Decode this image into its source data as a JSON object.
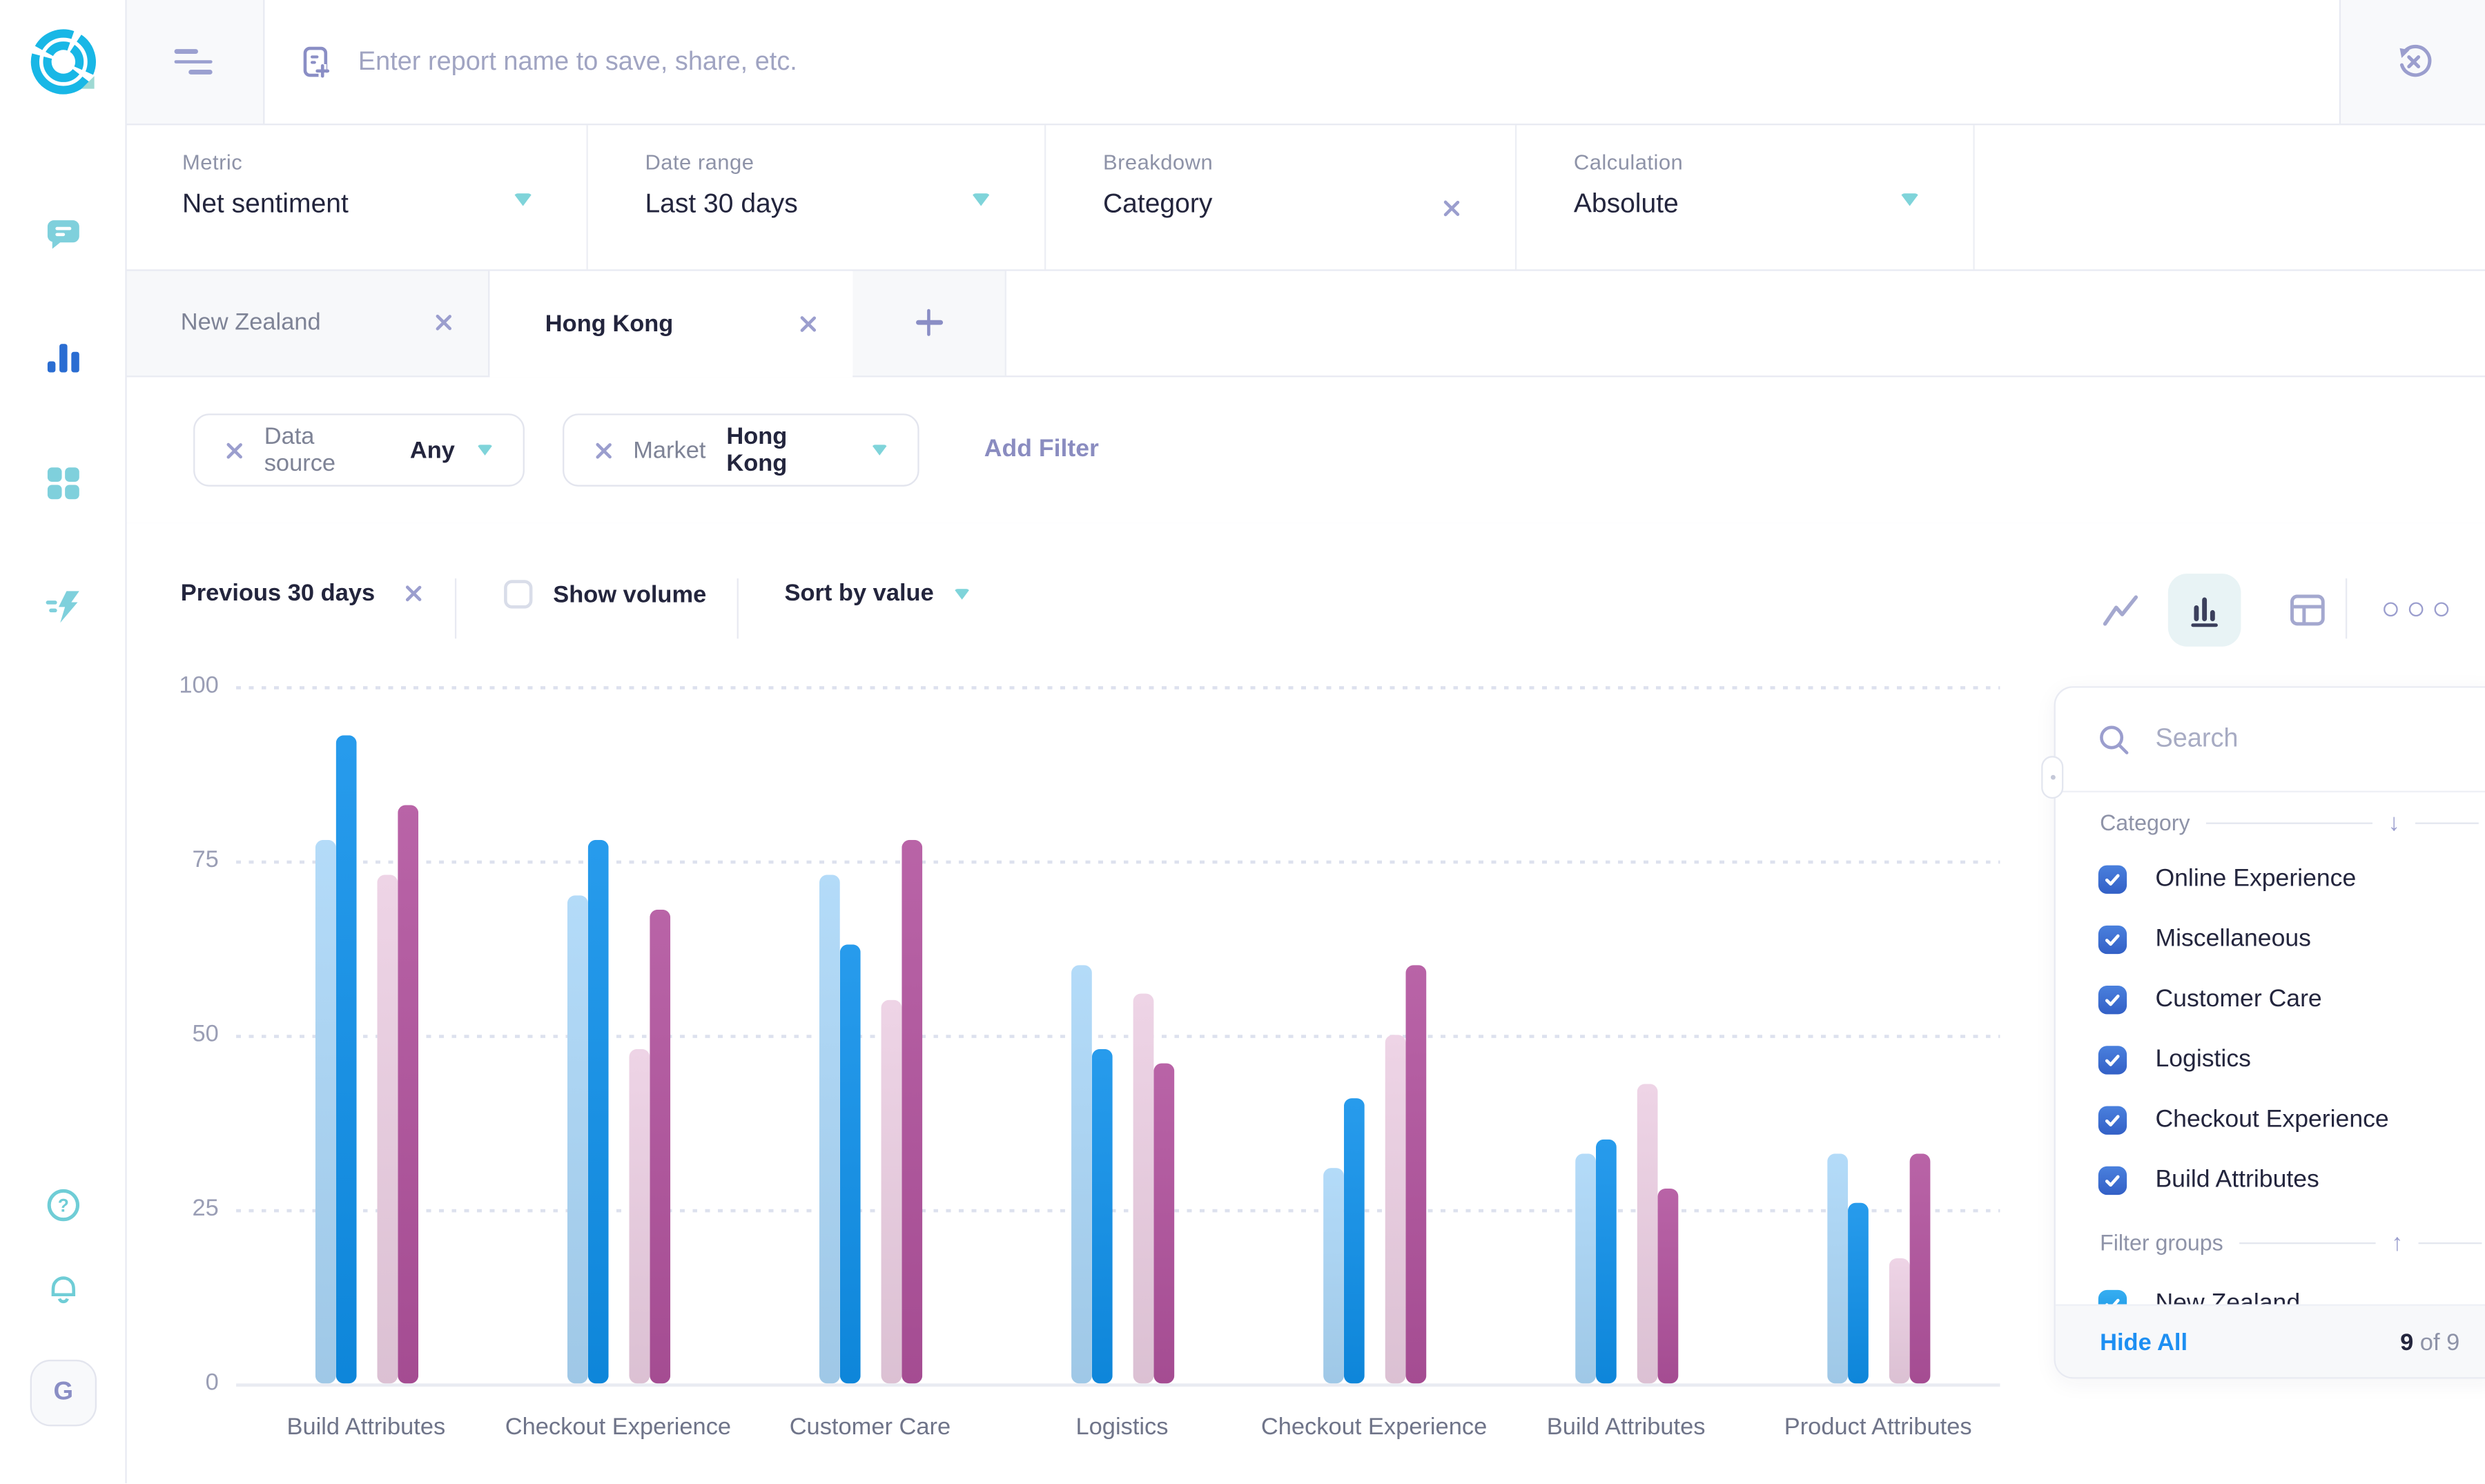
{
  "app": {
    "avatar_initial": "G"
  },
  "topbar": {
    "report_name_placeholder": "Enter report name to save, share, etc."
  },
  "filter_bar": [
    {
      "label": "Metric",
      "value": "Net sentiment",
      "control": "dropdown"
    },
    {
      "label": "Date range",
      "value": "Last 30 days",
      "control": "dropdown"
    },
    {
      "label": "Breakdown",
      "value": "Category",
      "control": "remove"
    },
    {
      "label": "Calculation",
      "value": "Absolute",
      "control": "dropdown"
    }
  ],
  "tabs": {
    "items": [
      {
        "label": "New Zealand",
        "active": false
      },
      {
        "label": "Hong Kong",
        "active": true
      }
    ]
  },
  "filters": {
    "chips": [
      {
        "label": "Data source",
        "value": "Any"
      },
      {
        "label": "Market",
        "value": "Hong Kong"
      }
    ],
    "add_filter_label": "Add Filter"
  },
  "chart_controls": {
    "comparison_chip": "Previous 30 days",
    "show_volume_label": "Show volume",
    "show_volume_checked": false,
    "sort_by_label": "Sort by value",
    "views": [
      "line-chart",
      "bar-chart",
      "table"
    ],
    "active_view": "bar-chart"
  },
  "chart_data": {
    "type": "bar",
    "categories": [
      "Build Attributes",
      "Checkout Experience",
      "Customer Care",
      "Logistics",
      "Checkout Experience",
      "Build Attributes",
      "Product Attributes"
    ],
    "series": [
      {
        "name": "light-blue",
        "color": "#abd7f8",
        "values": [
          78,
          70,
          73,
          60,
          31,
          33,
          33
        ]
      },
      {
        "name": "blue",
        "color": "#0f90ea",
        "values": [
          93,
          78,
          63,
          48,
          41,
          35,
          26
        ]
      },
      {
        "name": "light-pink",
        "color": "#eccfe3",
        "values": [
          73,
          48,
          55,
          56,
          50,
          43,
          18
        ]
      },
      {
        "name": "magenta",
        "color": "#b1529d",
        "values": [
          83,
          68,
          78,
          46,
          60,
          28,
          33
        ]
      }
    ],
    "ylim": [
      0,
      100
    ],
    "yticks": [
      100,
      75,
      50,
      25,
      0
    ],
    "grid": "horizontal-dotted",
    "legend": "none",
    "xlabel": "",
    "ylabel": ""
  },
  "side_panel": {
    "search_placeholder": "Search",
    "sections": [
      {
        "header": "Category",
        "sort_direction": "down",
        "items": [
          {
            "label": "Online Experience",
            "checked": true
          },
          {
            "label": "Miscellaneous",
            "checked": true
          },
          {
            "label": "Customer Care",
            "checked": true
          },
          {
            "label": "Logistics",
            "checked": true
          },
          {
            "label": "Checkout Experience",
            "checked": true
          },
          {
            "label": "Build Attributes",
            "checked": true
          }
        ]
      },
      {
        "header": "Filter groups",
        "sort_direction": "up",
        "items": [
          {
            "label": "New Zealand",
            "checked": true
          }
        ]
      }
    ],
    "footer": {
      "hide_all": "Hide All",
      "count": "9",
      "count_suffix": "of 9"
    }
  },
  "colors": {
    "accent_teal": "#7fd4da",
    "icon_purple": "#9b9ece",
    "text_dark": "#23253d",
    "text_gray": "#8e93a8",
    "link_blue": "#1e8ff2",
    "checkbox_blue": "#3a6fd3",
    "checkbox_cyan": "#29a7ef",
    "sidebar_teal": "#7fd0dc",
    "sidebar_active_blue": "#2a6dd2",
    "logo_cyan": "#18b7e6",
    "border": "#e8eaf2"
  }
}
